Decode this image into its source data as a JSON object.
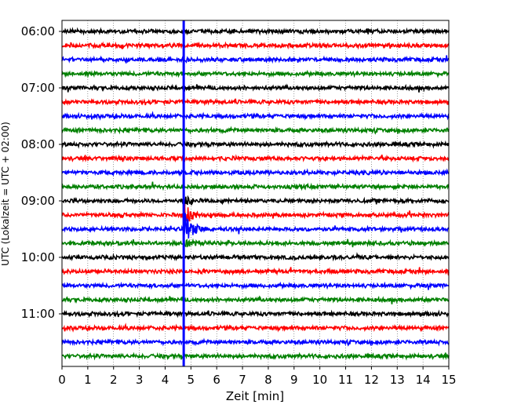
{
  "chart_data": {
    "type": "line",
    "title": "",
    "xlabel": "Zeit  [min]",
    "ylabel": "UTC (Lokalzeit = UTC + 02:00)",
    "xlim": [
      0,
      15
    ],
    "x_ticks": [
      0,
      1,
      2,
      3,
      4,
      5,
      6,
      7,
      8,
      9,
      10,
      11,
      12,
      13,
      14,
      15
    ],
    "y_tick_labels": [
      "06:00",
      "07:00",
      "08:00",
      "09:00",
      "10:00",
      "11:00"
    ],
    "grid": "vertical dotted",
    "trace_interval_min": 15,
    "trace_start": "06:00",
    "trace_count": 24,
    "trace_colors": [
      "#000000",
      "#ff0000",
      "#0000ff",
      "#008000"
    ],
    "event": {
      "x_min": 4.72,
      "trace_times": [
        "09:00",
        "09:15",
        "09:30",
        "09:45"
      ],
      "peak_trace_time": "09:30"
    }
  }
}
